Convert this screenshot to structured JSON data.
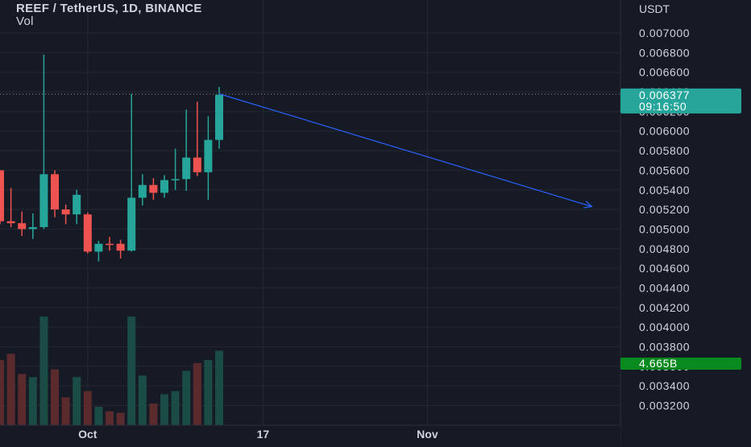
{
  "header": {
    "symbol": "REEF / TetherUS, 1D, BINANCE",
    "volume_label": "Vol"
  },
  "price_axis": {
    "currency": "USDT",
    "last_price_label": "0.006377",
    "countdown_label": "09:16:50",
    "volume_label": "4.665B",
    "tick_labels": [
      "0.007000",
      "0.006800",
      "0.006600",
      "0.006400",
      "0.006200",
      "0.006000",
      "0.005800",
      "0.005600",
      "0.005400",
      "0.005200",
      "0.005000",
      "0.004800",
      "0.004600",
      "0.004400",
      "0.004200",
      "0.004000",
      "0.003800",
      "0.003600",
      "0.003400",
      "0.003200"
    ]
  },
  "time_axis": {
    "tick_labels": [
      "Oct",
      "17",
      "Nov"
    ]
  },
  "colors": {
    "background": "#161a25",
    "grid": "#242833",
    "up": "#26a69a",
    "down": "#ef5350",
    "volume_up": "#1b4b45",
    "volume_down": "#5a2a2d",
    "trendline": "#2962ff",
    "price_line": "#9598a1",
    "last_price_badge": "#26a69a",
    "volume_badge": "#088a1e",
    "axis_text": "#d1d4dc"
  },
  "chart_data": {
    "type": "candlestick",
    "title": "REEF / TetherUS, 1D, BINANCE",
    "y_axis_unit": "USDT",
    "ylim": [
      0.00313,
      0.00714
    ],
    "grid": true,
    "x_ticks": [
      {
        "label": "Oct",
        "date": "2022-10-01"
      },
      {
        "label": "17",
        "date": "2022-10-17"
      },
      {
        "label": "Nov",
        "date": "2022-11-01"
      }
    ],
    "candles": [
      {
        "date": "2022-09-23",
        "open": 0.0056,
        "high": 0.0056,
        "low": 0.00505,
        "close": 0.00508
      },
      {
        "date": "2022-09-24",
        "open": 0.00508,
        "high": 0.00542,
        "low": 0.00502,
        "close": 0.00506
      },
      {
        "date": "2022-09-25",
        "open": 0.00506,
        "high": 0.00518,
        "low": 0.00493,
        "close": 0.005
      },
      {
        "date": "2022-09-26",
        "open": 0.005,
        "high": 0.00516,
        "low": 0.0049,
        "close": 0.00502
      },
      {
        "date": "2022-09-27",
        "open": 0.00502,
        "high": 0.00678,
        "low": 0.005,
        "close": 0.00556
      },
      {
        "date": "2022-09-28",
        "open": 0.00556,
        "high": 0.0056,
        "low": 0.00512,
        "close": 0.0052
      },
      {
        "date": "2022-09-29",
        "open": 0.0052,
        "high": 0.00525,
        "low": 0.00505,
        "close": 0.00515
      },
      {
        "date": "2022-09-30",
        "open": 0.00515,
        "high": 0.0054,
        "low": 0.00505,
        "close": 0.00535
      },
      {
        "date": "2022-10-01",
        "open": 0.00515,
        "high": 0.00517,
        "low": 0.00475,
        "close": 0.00477
      },
      {
        "date": "2022-10-02",
        "open": 0.00477,
        "high": 0.00488,
        "low": 0.00467,
        "close": 0.00485
      },
      {
        "date": "2022-10-03",
        "open": 0.00485,
        "high": 0.00492,
        "low": 0.00478,
        "close": 0.00484
      },
      {
        "date": "2022-10-04",
        "open": 0.00485,
        "high": 0.00489,
        "low": 0.0047,
        "close": 0.00478
      },
      {
        "date": "2022-10-05",
        "open": 0.00478,
        "high": 0.00638,
        "low": 0.00477,
        "close": 0.00532
      },
      {
        "date": "2022-10-06",
        "open": 0.00532,
        "high": 0.00556,
        "low": 0.00524,
        "close": 0.00545
      },
      {
        "date": "2022-10-07",
        "open": 0.00545,
        "high": 0.00552,
        "low": 0.0053,
        "close": 0.00537
      },
      {
        "date": "2022-10-08",
        "open": 0.00537,
        "high": 0.00555,
        "low": 0.00532,
        "close": 0.0055
      },
      {
        "date": "2022-10-09",
        "open": 0.0055,
        "high": 0.00582,
        "low": 0.0054,
        "close": 0.00551
      },
      {
        "date": "2022-10-10",
        "open": 0.00551,
        "high": 0.00622,
        "low": 0.00539,
        "close": 0.00573
      },
      {
        "date": "2022-10-11",
        "open": 0.00573,
        "high": 0.0063,
        "low": 0.00554,
        "close": 0.00558
      },
      {
        "date": "2022-10-12",
        "open": 0.00558,
        "high": 0.00615,
        "low": 0.0053,
        "close": 0.00591
      },
      {
        "date": "2022-10-13",
        "open": 0.00591,
        "high": 0.00645,
        "low": 0.00582,
        "close": 0.00637
      }
    ],
    "volume": [
      42,
      46,
      33,
      31,
      70,
      36,
      18,
      31,
      22,
      12,
      9,
      8,
      70,
      32,
      14,
      20,
      22,
      35,
      40,
      42,
      48
    ],
    "last_price": 0.006377,
    "trendline": {
      "start": {
        "date": "2022-10-13",
        "price": 0.00638
      },
      "end": {
        "date": "2022-11-16",
        "price": 0.00523
      }
    }
  }
}
